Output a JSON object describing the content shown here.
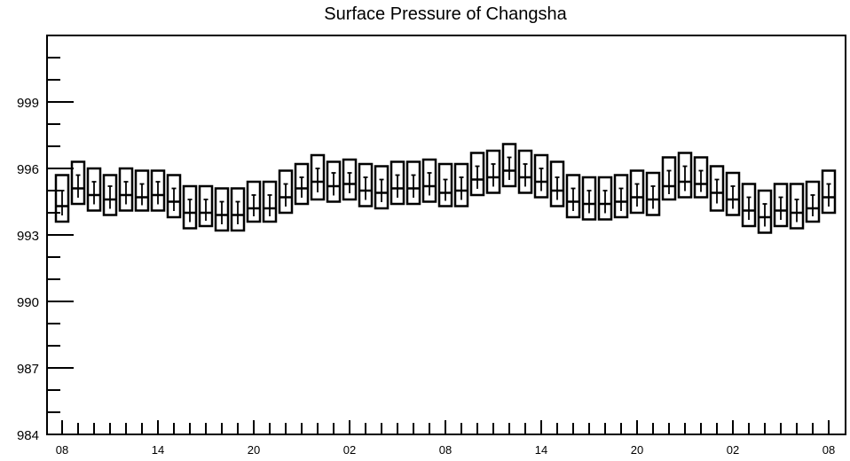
{
  "chart_data": {
    "type": "box",
    "title": "Surface Pressure of Changsha",
    "xlabel": "",
    "ylabel": "",
    "ylim": [
      984,
      1002
    ],
    "yticks": [
      984,
      987,
      990,
      993,
      996,
      999
    ],
    "xticks": [
      {
        "index": 0,
        "label": "08"
      },
      {
        "index": 6,
        "label": "14"
      },
      {
        "index": 12,
        "label": "20"
      },
      {
        "index": 18,
        "label": "02"
      },
      {
        "index": 24,
        "label": "08"
      },
      {
        "index": 30,
        "label": "14"
      },
      {
        "index": 36,
        "label": "20"
      },
      {
        "index": 42,
        "label": "02"
      },
      {
        "index": 48,
        "label": "08"
      }
    ],
    "boxes": [
      {
        "index": 0,
        "q1": 993.6,
        "median": 994.3,
        "q3": 995.7,
        "mean": 995.0
      },
      {
        "index": 1,
        "q1": 994.4,
        "median": 995.1,
        "q3": 996.3,
        "mean": 995.7
      },
      {
        "index": 2,
        "q1": 994.1,
        "median": 994.8,
        "q3": 996.0,
        "mean": 995.4
      },
      {
        "index": 3,
        "q1": 993.9,
        "median": 994.6,
        "q3": 995.7,
        "mean": 995.2
      },
      {
        "index": 4,
        "q1": 994.1,
        "median": 994.8,
        "q3": 996.0,
        "mean": 995.4
      },
      {
        "index": 5,
        "q1": 994.1,
        "median": 994.7,
        "q3": 995.9,
        "mean": 995.3
      },
      {
        "index": 6,
        "q1": 994.1,
        "median": 994.8,
        "q3": 995.9,
        "mean": 995.4
      },
      {
        "index": 7,
        "q1": 993.8,
        "median": 994.5,
        "q3": 995.7,
        "mean": 995.1
      },
      {
        "index": 8,
        "q1": 993.3,
        "median": 994.0,
        "q3": 995.2,
        "mean": 994.6
      },
      {
        "index": 9,
        "q1": 993.4,
        "median": 994.0,
        "q3": 995.2,
        "mean": 994.6
      },
      {
        "index": 10,
        "q1": 993.2,
        "median": 993.9,
        "q3": 995.1,
        "mean": 994.5
      },
      {
        "index": 11,
        "q1": 993.2,
        "median": 993.9,
        "q3": 995.1,
        "mean": 994.5
      },
      {
        "index": 12,
        "q1": 993.6,
        "median": 994.2,
        "q3": 995.4,
        "mean": 994.8
      },
      {
        "index": 13,
        "q1": 993.6,
        "median": 994.2,
        "q3": 995.4,
        "mean": 994.8
      },
      {
        "index": 14,
        "q1": 994.0,
        "median": 994.7,
        "q3": 995.9,
        "mean": 995.3
      },
      {
        "index": 15,
        "q1": 994.4,
        "median": 995.1,
        "q3": 996.2,
        "mean": 995.6
      },
      {
        "index": 16,
        "q1": 994.6,
        "median": 995.4,
        "q3": 996.6,
        "mean": 996.0
      },
      {
        "index": 17,
        "q1": 994.5,
        "median": 995.2,
        "q3": 996.3,
        "mean": 995.8
      },
      {
        "index": 18,
        "q1": 994.6,
        "median": 995.3,
        "q3": 996.4,
        "mean": 995.8
      },
      {
        "index": 19,
        "q1": 994.3,
        "median": 995.0,
        "q3": 996.2,
        "mean": 995.6
      },
      {
        "index": 20,
        "q1": 994.2,
        "median": 994.9,
        "q3": 996.1,
        "mean": 995.5
      },
      {
        "index": 21,
        "q1": 994.4,
        "median": 995.1,
        "q3": 996.3,
        "mean": 995.7
      },
      {
        "index": 22,
        "q1": 994.4,
        "median": 995.1,
        "q3": 996.3,
        "mean": 995.7
      },
      {
        "index": 23,
        "q1": 994.5,
        "median": 995.2,
        "q3": 996.4,
        "mean": 995.8
      },
      {
        "index": 24,
        "q1": 994.3,
        "median": 994.9,
        "q3": 996.2,
        "mean": 995.5
      },
      {
        "index": 25,
        "q1": 994.3,
        "median": 995.0,
        "q3": 996.2,
        "mean": 995.6
      },
      {
        "index": 26,
        "q1": 994.8,
        "median": 995.5,
        "q3": 996.7,
        "mean": 996.1
      },
      {
        "index": 27,
        "q1": 994.9,
        "median": 995.6,
        "q3": 996.8,
        "mean": 996.2
      },
      {
        "index": 28,
        "q1": 995.2,
        "median": 995.9,
        "q3": 997.1,
        "mean": 996.5
      },
      {
        "index": 29,
        "q1": 994.9,
        "median": 995.6,
        "q3": 996.8,
        "mean": 996.2
      },
      {
        "index": 30,
        "q1": 994.7,
        "median": 995.4,
        "q3": 996.6,
        "mean": 996.0
      },
      {
        "index": 31,
        "q1": 994.3,
        "median": 995.0,
        "q3": 996.3,
        "mean": 995.6
      },
      {
        "index": 32,
        "q1": 993.8,
        "median": 994.5,
        "q3": 995.7,
        "mean": 995.1
      },
      {
        "index": 33,
        "q1": 993.7,
        "median": 994.4,
        "q3": 995.6,
        "mean": 995.0
      },
      {
        "index": 34,
        "q1": 993.7,
        "median": 994.4,
        "q3": 995.6,
        "mean": 995.0
      },
      {
        "index": 35,
        "q1": 993.8,
        "median": 994.5,
        "q3": 995.7,
        "mean": 995.1
      },
      {
        "index": 36,
        "q1": 994.0,
        "median": 994.7,
        "q3": 995.9,
        "mean": 995.3
      },
      {
        "index": 37,
        "q1": 993.9,
        "median": 994.6,
        "q3": 995.8,
        "mean": 995.2
      },
      {
        "index": 38,
        "q1": 994.6,
        "median": 995.2,
        "q3": 996.5,
        "mean": 995.9
      },
      {
        "index": 39,
        "q1": 994.7,
        "median": 995.4,
        "q3": 996.7,
        "mean": 996.1
      },
      {
        "index": 40,
        "q1": 994.7,
        "median": 995.3,
        "q3": 996.5,
        "mean": 995.9
      },
      {
        "index": 41,
        "q1": 994.1,
        "median": 994.9,
        "q3": 996.1,
        "mean": 995.5
      },
      {
        "index": 42,
        "q1": 993.9,
        "median": 994.6,
        "q3": 995.8,
        "mean": 995.2
      },
      {
        "index": 43,
        "q1": 993.4,
        "median": 994.1,
        "q3": 995.3,
        "mean": 994.7
      },
      {
        "index": 44,
        "q1": 993.1,
        "median": 993.8,
        "q3": 995.0,
        "mean": 994.4
      },
      {
        "index": 45,
        "q1": 993.4,
        "median": 994.1,
        "q3": 995.3,
        "mean": 994.7
      },
      {
        "index": 46,
        "q1": 993.3,
        "median": 994.0,
        "q3": 995.3,
        "mean": 994.6
      },
      {
        "index": 47,
        "q1": 993.6,
        "median": 994.2,
        "q3": 995.4,
        "mean": 994.8
      },
      {
        "index": 48,
        "q1": 994.0,
        "median": 994.7,
        "q3": 995.9,
        "mean": 995.3
      }
    ],
    "grid": false,
    "legend": "none",
    "colors": {
      "stroke": "#000000",
      "background": "#ffffff"
    }
  }
}
